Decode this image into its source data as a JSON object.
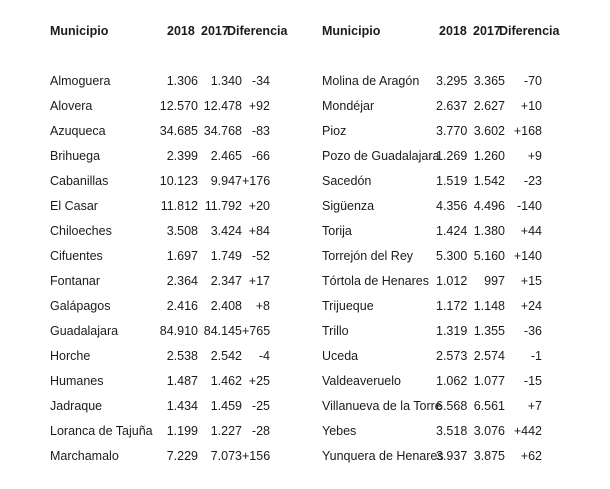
{
  "page": {
    "background": "#ffffff",
    "text_color": "#1b1b1b"
  },
  "headers": {
    "municipio": "Municipio",
    "y2018": "2018",
    "y2017": "2017",
    "diferencia": "Diferencia"
  },
  "tables": {
    "left": {
      "rows": [
        {
          "municipio": "Almoguera",
          "y2018": "1.306",
          "y2017": "1.340",
          "diferencia": "-34"
        },
        {
          "municipio": "Alovera",
          "y2018": "12.570",
          "y2017": "12.478",
          "diferencia": "+92"
        },
        {
          "municipio": "Azuqueca",
          "y2018": "34.685",
          "y2017": "34.768",
          "diferencia": "-83"
        },
        {
          "municipio": "Brihuega",
          "y2018": "2.399",
          "y2017": "2.465",
          "diferencia": "-66"
        },
        {
          "municipio": "Cabanillas",
          "y2018": "10.123",
          "y2017": "9.947",
          "diferencia": "+176"
        },
        {
          "municipio": "El Casar",
          "y2018": "11.812",
          "y2017": "11.792",
          "diferencia": "+20"
        },
        {
          "municipio": "Chiloeches",
          "y2018": "3.508",
          "y2017": "3.424",
          "diferencia": "+84"
        },
        {
          "municipio": "Cifuentes",
          "y2018": "1.697",
          "y2017": "1.749",
          "diferencia": "-52"
        },
        {
          "municipio": "Fontanar",
          "y2018": "2.364",
          "y2017": "2.347",
          "diferencia": "+17"
        },
        {
          "municipio": "Galápagos",
          "y2018": "2.416",
          "y2017": "2.408",
          "diferencia": "+8"
        },
        {
          "municipio": "Guadalajara",
          "y2018": "84.910",
          "y2017": "84.145",
          "diferencia": "+765"
        },
        {
          "municipio": "Horche",
          "y2018": "2.538",
          "y2017": "2.542",
          "diferencia": "-4"
        },
        {
          "municipio": "Humanes",
          "y2018": "1.487",
          "y2017": "1.462",
          "diferencia": "+25"
        },
        {
          "municipio": "Jadraque",
          "y2018": "1.434",
          "y2017": "1.459",
          "diferencia": "-25"
        },
        {
          "municipio": "Loranca de Tajuña",
          "y2018": "1.199",
          "y2017": "1.227",
          "diferencia": "-28"
        },
        {
          "municipio": "Marchamalo",
          "y2018": "7.229",
          "y2017": "7.073",
          "diferencia": "+156"
        }
      ]
    },
    "right": {
      "rows": [
        {
          "municipio": "Molina de Aragón",
          "y2018": "3.295",
          "y2017": "3.365",
          "diferencia": "-70"
        },
        {
          "municipio": "Mondéjar",
          "y2018": "2.637",
          "y2017": "2.627",
          "diferencia": "+10"
        },
        {
          "municipio": "Pioz",
          "y2018": "3.770",
          "y2017": "3.602",
          "diferencia": "+168"
        },
        {
          "municipio": "Pozo de Guadalajara",
          "y2018": "1.269",
          "y2017": "1.260",
          "diferencia": "+9"
        },
        {
          "municipio": "Sacedón",
          "y2018": "1.519",
          "y2017": "1.542",
          "diferencia": "-23"
        },
        {
          "municipio": "Sigüenza",
          "y2018": "4.356",
          "y2017": "4.496",
          "diferencia": "-140"
        },
        {
          "municipio": "Torija",
          "y2018": "1.424",
          "y2017": "1.380",
          "diferencia": "+44"
        },
        {
          "municipio": "Torrejón del Rey",
          "y2018": "5.300",
          "y2017": "5.160",
          "diferencia": "+140"
        },
        {
          "municipio": "Tórtola de Henares",
          "y2018": "1.012",
          "y2017": "997",
          "diferencia": "+15"
        },
        {
          "municipio": "Trijueque",
          "y2018": "1.172",
          "y2017": "1.148",
          "diferencia": "+24"
        },
        {
          "municipio": "Trillo",
          "y2018": "1.319",
          "y2017": "1.355",
          "diferencia": "-36"
        },
        {
          "municipio": "Uceda",
          "y2018": "2.573",
          "y2017": "2.574",
          "diferencia": "-1"
        },
        {
          "municipio": "Valdeaveruelo",
          "y2018": "1.062",
          "y2017": "1.077",
          "diferencia": "-15"
        },
        {
          "municipio": "Villanueva de la Torre",
          "y2018": "6.568",
          "y2017": "6.561",
          "diferencia": "+7"
        },
        {
          "municipio": "Yebes",
          "y2018": "3.518",
          "y2017": "3.076",
          "diferencia": "+442"
        },
        {
          "municipio": "Yunquera de Henares",
          "y2018": "3.937",
          "y2017": "3.875",
          "diferencia": "+62"
        }
      ]
    }
  }
}
